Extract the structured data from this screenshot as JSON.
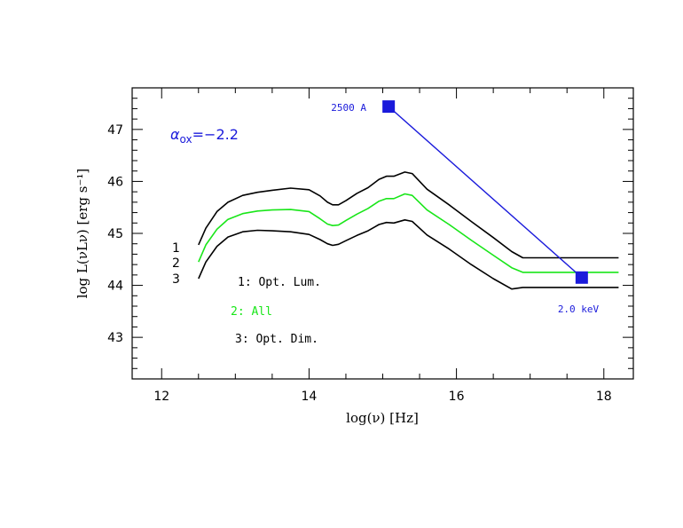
{
  "chart_data": {
    "type": "line",
    "xlabel": "log(ν)  [Hz]",
    "ylabel": "log  L(νLν)  [erg  s⁻¹]",
    "xlim": [
      11.6,
      18.4
    ],
    "ylim": [
      42.2,
      47.8
    ],
    "x_ticks": [
      12,
      14,
      16,
      18
    ],
    "y_ticks": [
      43,
      44,
      45,
      46,
      47
    ],
    "annotation": {
      "alpha_symbol": "α",
      "alpha_sub": "ox",
      "alpha_value": "=−2.2",
      "color": "#1a1adb"
    },
    "series": [
      {
        "name": "1: Opt. Lum.",
        "color": "#000000",
        "curve_label": "1",
        "x": [
          12.5,
          12.6,
          12.75,
          12.9,
          13.1,
          13.3,
          13.5,
          13.75,
          14.0,
          14.15,
          14.25,
          14.32,
          14.4,
          14.5,
          14.65,
          14.8,
          14.95,
          15.05,
          15.15,
          15.3,
          15.4,
          15.6,
          15.9,
          16.2,
          16.5,
          16.75,
          16.9,
          17.2,
          17.6,
          18.2
        ],
        "y": [
          44.78,
          45.1,
          45.42,
          45.6,
          45.73,
          45.79,
          45.83,
          45.87,
          45.84,
          45.72,
          45.6,
          45.55,
          45.55,
          45.63,
          45.77,
          45.88,
          46.04,
          46.1,
          46.1,
          46.18,
          46.15,
          45.85,
          45.55,
          45.23,
          44.92,
          44.65,
          44.53,
          44.53,
          44.53,
          44.53
        ]
      },
      {
        "name": "2: All",
        "color": "#19e619",
        "curve_label": "2",
        "x": [
          12.5,
          12.6,
          12.75,
          12.9,
          13.1,
          13.3,
          13.5,
          13.75,
          14.0,
          14.15,
          14.25,
          14.32,
          14.4,
          14.5,
          14.65,
          14.8,
          14.95,
          15.05,
          15.15,
          15.3,
          15.4,
          15.6,
          15.9,
          16.2,
          16.5,
          16.75,
          16.9,
          17.2,
          17.6,
          18.2
        ],
        "y": [
          44.45,
          44.78,
          45.08,
          45.27,
          45.38,
          45.43,
          45.45,
          45.46,
          45.42,
          45.28,
          45.18,
          45.15,
          45.16,
          45.25,
          45.37,
          45.48,
          45.62,
          45.67,
          45.67,
          45.76,
          45.73,
          45.45,
          45.17,
          44.87,
          44.58,
          44.34,
          44.25,
          44.25,
          44.25,
          44.25
        ]
      },
      {
        "name": "3: Opt. Dim.",
        "color": "#000000",
        "curve_label": "3",
        "x": [
          12.5,
          12.6,
          12.75,
          12.9,
          13.1,
          13.3,
          13.5,
          13.75,
          14.0,
          14.15,
          14.25,
          14.32,
          14.4,
          14.5,
          14.65,
          14.8,
          14.95,
          15.05,
          15.15,
          15.3,
          15.4,
          15.6,
          15.9,
          16.2,
          16.5,
          16.75,
          16.9,
          17.2,
          17.6,
          18.2
        ],
        "y": [
          44.13,
          44.45,
          44.75,
          44.93,
          45.03,
          45.06,
          45.05,
          45.03,
          44.98,
          44.88,
          44.8,
          44.77,
          44.79,
          44.86,
          44.96,
          45.05,
          45.17,
          45.21,
          45.2,
          45.26,
          45.23,
          44.97,
          44.7,
          44.4,
          44.13,
          43.93,
          43.96,
          43.96,
          43.96,
          43.96
        ]
      }
    ],
    "legend": [
      {
        "text": "1:  Opt.  Lum.",
        "color": "#000000"
      },
      {
        "text": "2:  All",
        "color": "#19e619"
      },
      {
        "text": "3:  Opt.  Dim.",
        "color": "#000000"
      }
    ],
    "alpha_ox_line": {
      "color": "#1a1adb",
      "points": [
        {
          "x": 15.08,
          "y": 47.44,
          "label": "2500  A"
        },
        {
          "x": 17.7,
          "y": 44.15,
          "label": "2.0  keV"
        }
      ]
    }
  }
}
